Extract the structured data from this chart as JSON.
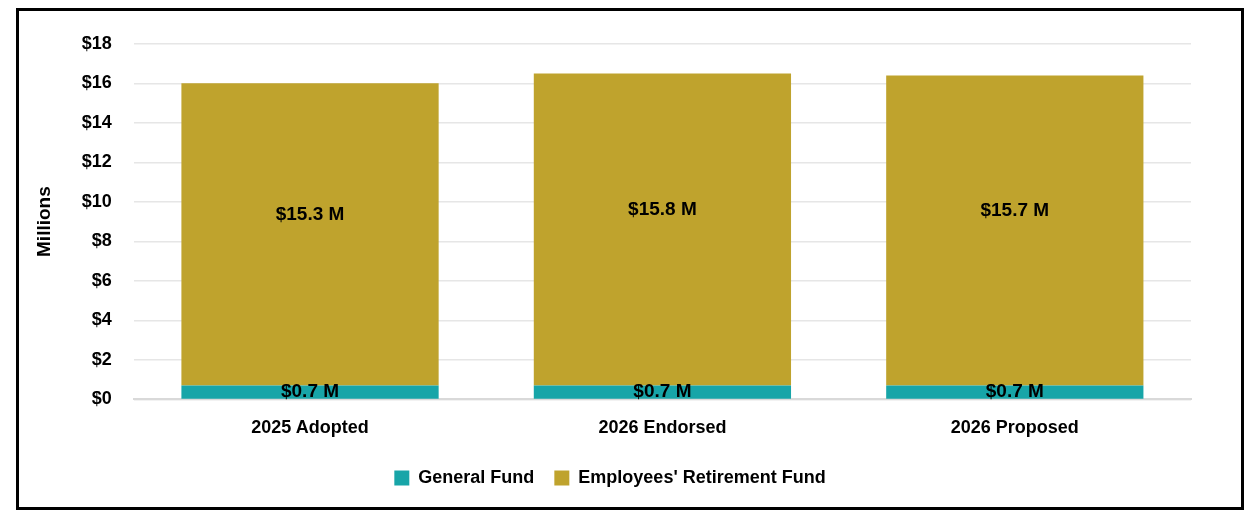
{
  "chart_data": {
    "type": "bar",
    "stacked": true,
    "ylabel": "Millions",
    "categories": [
      "2025 Adopted",
      "2026 Endorsed",
      "2026 Proposed"
    ],
    "series": [
      {
        "name": "General Fund",
        "color": "#17a5a8",
        "values": [
          0.7,
          0.7,
          0.7
        ],
        "value_labels": [
          "$0.7 M",
          "$0.7 M",
          "$0.7 M"
        ]
      },
      {
        "name": "Employees' Retirement Fund",
        "color": "#bfa32d",
        "values": [
          15.3,
          15.8,
          15.7
        ],
        "value_labels": [
          "$15.3 M",
          "$15.8 M",
          "$15.7 M"
        ]
      }
    ],
    "ylim": [
      0,
      18
    ],
    "yticks": [
      {
        "value": 0,
        "label": "$0"
      },
      {
        "value": 2,
        "label": "$2"
      },
      {
        "value": 4,
        "label": "$4"
      },
      {
        "value": 6,
        "label": "$6"
      },
      {
        "value": 8,
        "label": "$8"
      },
      {
        "value": 10,
        "label": "$10"
      },
      {
        "value": 12,
        "label": "$12"
      },
      {
        "value": 14,
        "label": "$14"
      },
      {
        "value": 16,
        "label": "$16"
      },
      {
        "value": 18,
        "label": "$18"
      }
    ],
    "grid": "y",
    "legend": "bottom"
  }
}
